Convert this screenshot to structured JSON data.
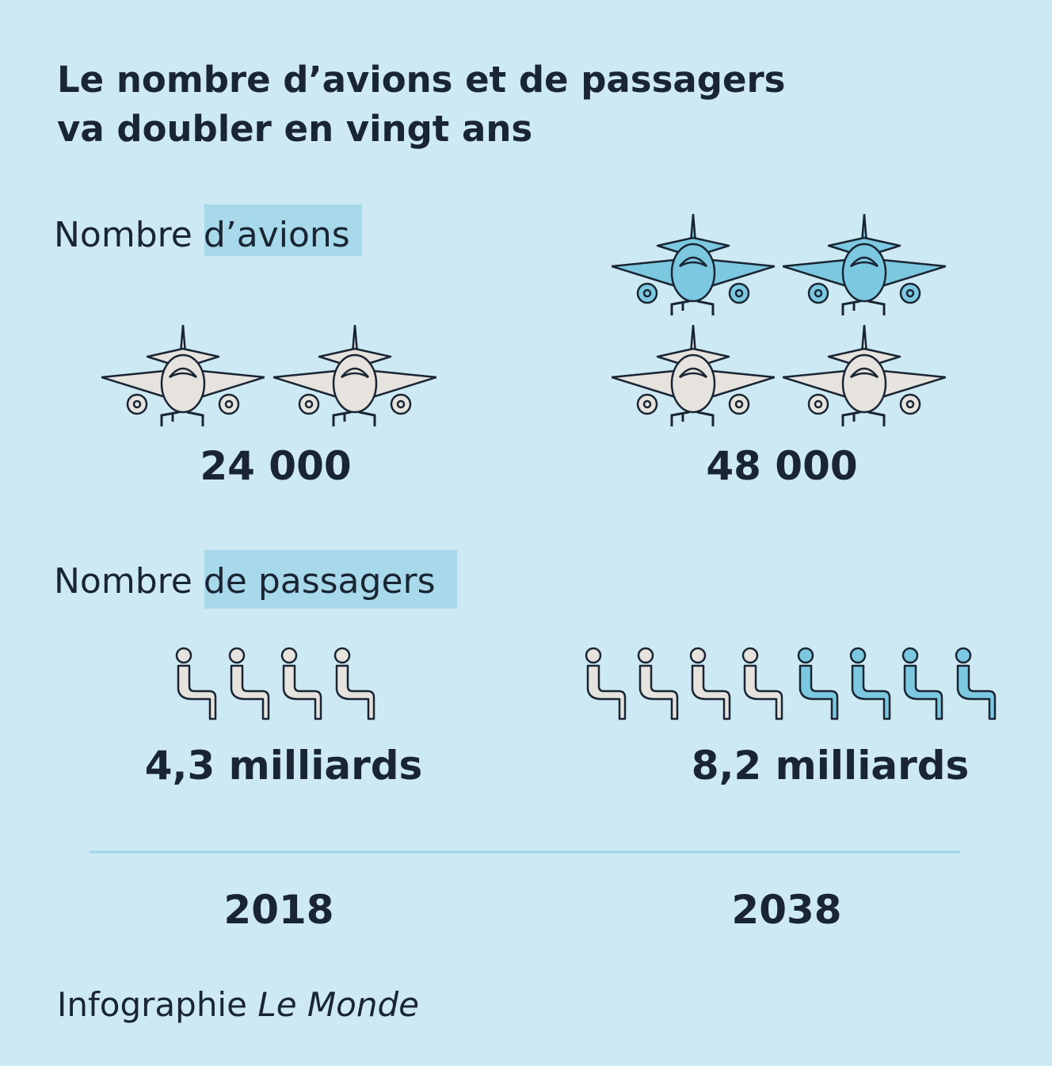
{
  "header": {
    "title_lines": [
      "Le nombre d’avions et de passagers",
      "va doubler en vingt ans"
    ]
  },
  "planes": {
    "label": "Nombre",
    "label_highlight": "d’avions",
    "values": [
      "24 000",
      "48 000"
    ]
  },
  "passengers": {
    "label": "Nombre",
    "label_highlight": "de passagers",
    "values": [
      "4,3 milliards",
      "8,2 milliards"
    ]
  },
  "years": [
    "2018",
    "2038"
  ],
  "credit": {
    "text": "Infographie",
    "source": "Le Monde"
  }
}
